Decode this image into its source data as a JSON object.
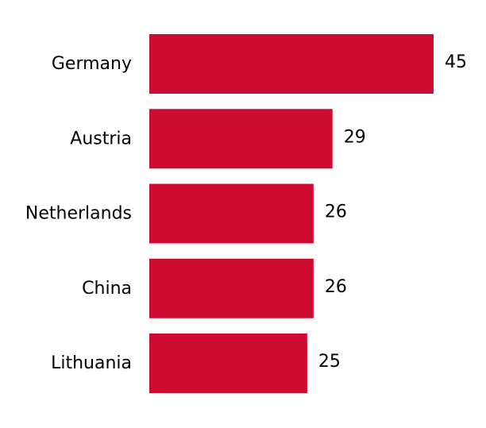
{
  "chart_data": {
    "type": "bar",
    "orientation": "horizontal",
    "categories": [
      "Germany",
      "Austria",
      "Netherlands",
      "China",
      "Lithuania"
    ],
    "values": [
      45,
      29,
      26,
      26,
      25
    ],
    "value_labels": [
      "45",
      "29",
      "26",
      "26",
      "25"
    ],
    "title": "",
    "xlabel": "",
    "ylabel": "",
    "xlim": [
      0,
      45
    ],
    "grid": false,
    "legend": "none",
    "colors": {
      "bar": "#cc0c33",
      "text": "#000000",
      "background": "#ffffff"
    }
  }
}
